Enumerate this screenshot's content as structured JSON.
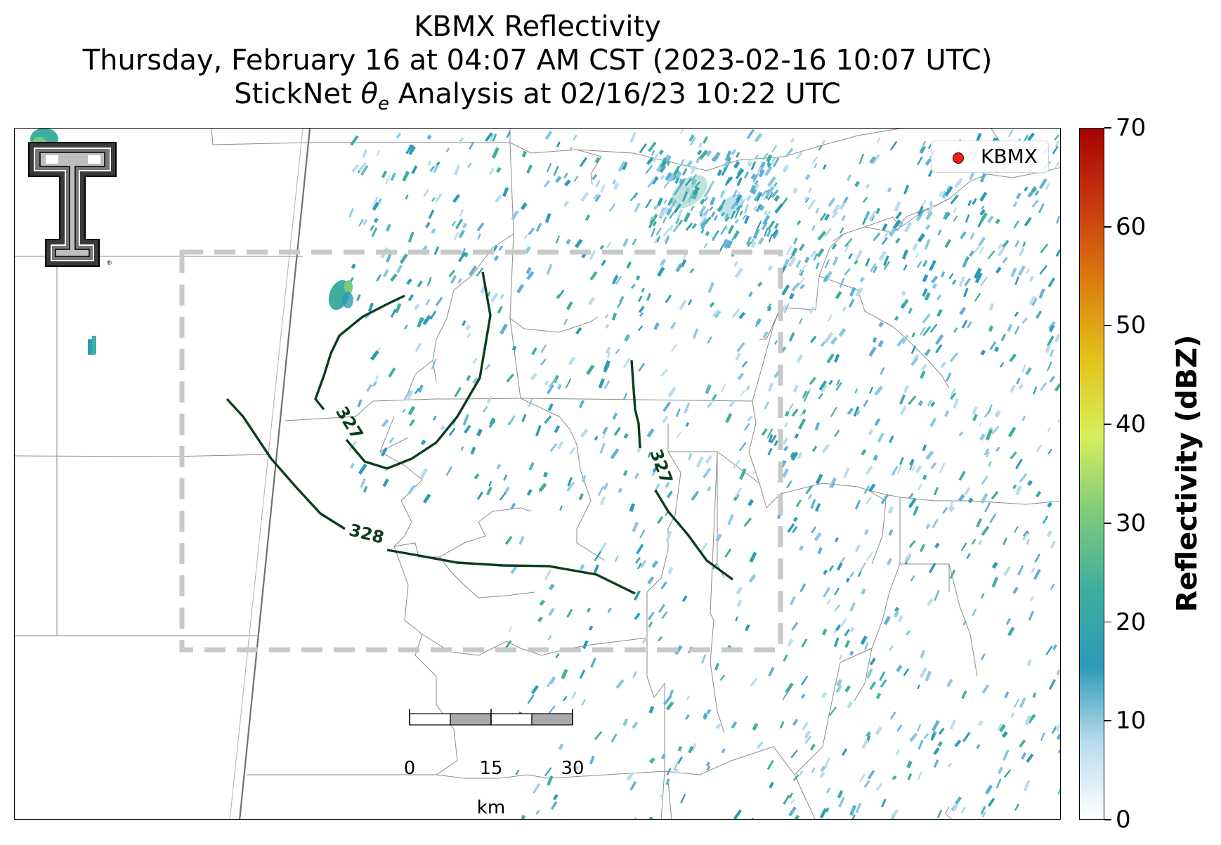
{
  "header": {
    "title": "KBMX Reflectivity",
    "subtitle_time": "Thursday, February 16 at 04:07 AM CST (2023-02-16 10:07 UTC)",
    "subtitle_analysis_prefix": "StickNet ",
    "subtitle_analysis_symbol": "θ",
    "subtitle_analysis_sub": "e",
    "subtitle_analysis_suffix": " Analysis at 02/16/23 10:22 UTC"
  },
  "legend": {
    "marker_label": "KBMX",
    "marker_color": "#ff1a1a"
  },
  "colorbar": {
    "label": "Reflectivity (dBZ)",
    "ticks": [
      "0",
      "10",
      "20",
      "30",
      "40",
      "50",
      "60",
      "70"
    ],
    "range": [
      0,
      70
    ],
    "colors": [
      "#ffffff",
      "#b8dcee",
      "#2b9bb8",
      "#3fae9e",
      "#7dcc7a",
      "#d8ef5a",
      "#e3c21a",
      "#dd7c0e",
      "#c83a0c",
      "#a60202"
    ]
  },
  "contours": {
    "color": "#0a3d1e",
    "labels": [
      "327",
      "327",
      "328"
    ]
  },
  "analysis_box": {
    "style": "dashed",
    "color": "#c8c8c8"
  },
  "scale_bar": {
    "ticks": [
      "0",
      "15",
      "30"
    ],
    "unit": "km"
  },
  "logo": {
    "description": "Texas Tech double-T logo",
    "text": "TT"
  }
}
